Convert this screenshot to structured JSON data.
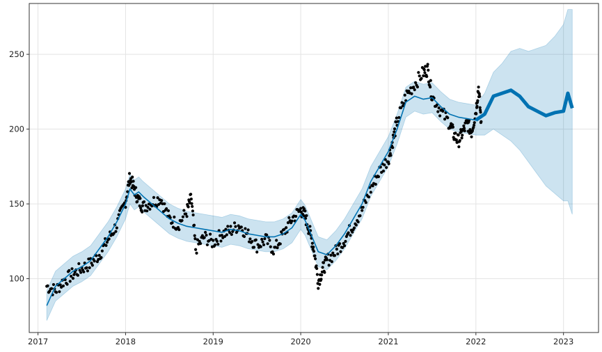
{
  "chart_data": {
    "type": "line",
    "title": "",
    "xlabel": "",
    "ylabel": "",
    "xlim": [
      2016.9,
      2023.4
    ],
    "ylim": [
      64,
      284
    ],
    "grid": true,
    "legend": "none",
    "x_ticks": [
      {
        "value": 2017,
        "label": "2017"
      },
      {
        "value": 2018,
        "label": "2018"
      },
      {
        "value": 2019,
        "label": "2019"
      },
      {
        "value": 2020,
        "label": "2020"
      },
      {
        "value": 2021,
        "label": "2021"
      },
      {
        "value": 2022,
        "label": "2022"
      },
      {
        "value": 2023,
        "label": "2023"
      }
    ],
    "y_ticks": [
      {
        "value": 100,
        "label": "100"
      },
      {
        "value": 150,
        "label": "150"
      },
      {
        "value": 200,
        "label": "200"
      },
      {
        "value": 250,
        "label": "250"
      }
    ],
    "colors": {
      "forecast_line": "#0072B2",
      "interval_fill": "#0072B2",
      "observed_points": "#000000",
      "grid": "#e3e3e3",
      "axes": "#333333"
    },
    "forecast": {
      "x": [
        2017.1,
        2017.2,
        2017.3,
        2017.4,
        2017.5,
        2017.6,
        2017.7,
        2017.8,
        2017.9,
        2018.0,
        2018.05,
        2018.1,
        2018.15,
        2018.2,
        2018.3,
        2018.4,
        2018.5,
        2018.6,
        2018.7,
        2018.8,
        2018.9,
        2019.0,
        2019.1,
        2019.2,
        2019.3,
        2019.4,
        2019.5,
        2019.6,
        2019.7,
        2019.8,
        2019.9,
        2020.0,
        2020.05,
        2020.1,
        2020.15,
        2020.2,
        2020.3,
        2020.4,
        2020.5,
        2020.6,
        2020.7,
        2020.8,
        2020.9,
        2021.0,
        2021.1,
        2021.2,
        2021.3,
        2021.4,
        2021.5,
        2021.6,
        2021.7,
        2021.8,
        2021.9,
        2022.0,
        2022.1,
        2022.2,
        2022.3,
        2022.4,
        2022.5,
        2022.6,
        2022.7,
        2022.8,
        2022.9,
        2023.0,
        2023.05,
        2023.1
      ],
      "yhat": [
        82,
        95,
        100,
        105,
        108,
        112,
        120,
        128,
        138,
        150,
        160,
        156,
        158,
        155,
        150,
        145,
        140,
        137,
        135,
        134,
        133,
        132,
        131,
        133,
        132,
        130,
        129,
        128,
        128,
        130,
        134,
        143,
        139,
        132,
        125,
        118,
        116,
        122,
        130,
        140,
        150,
        165,
        175,
        185,
        200,
        218,
        222,
        220,
        221,
        215,
        210,
        208,
        207,
        206,
        210,
        222,
        224,
        226,
        222,
        215,
        212,
        209,
        211,
        212,
        224,
        214
      ],
      "lower": [
        72,
        85,
        90,
        95,
        98,
        102,
        110,
        118,
        128,
        140,
        150,
        146,
        148,
        145,
        140,
        135,
        130,
        127,
        125,
        124,
        123,
        122,
        121,
        123,
        122,
        120,
        119,
        118,
        118,
        120,
        124,
        133,
        129,
        122,
        115,
        108,
        106,
        112,
        120,
        130,
        140,
        155,
        165,
        175,
        190,
        208,
        212,
        210,
        211,
        205,
        200,
        198,
        197,
        196,
        196,
        200,
        196,
        192,
        186,
        178,
        170,
        162,
        157,
        152,
        152,
        143
      ],
      "upper": [
        92,
        105,
        110,
        115,
        118,
        122,
        130,
        138,
        148,
        160,
        170,
        166,
        168,
        165,
        160,
        155,
        150,
        147,
        145,
        144,
        143,
        142,
        141,
        143,
        142,
        140,
        139,
        138,
        138,
        140,
        144,
        153,
        149,
        142,
        135,
        128,
        126,
        132,
        140,
        150,
        160,
        175,
        185,
        195,
        210,
        228,
        232,
        230,
        231,
        225,
        220,
        218,
        217,
        216,
        224,
        238,
        244,
        252,
        254,
        252,
        254,
        256,
        262,
        270,
        280,
        280
      ]
    },
    "observed_series": [
      {
        "x": 2017.1,
        "y": 95
      },
      {
        "x": 2017.2,
        "y": 92
      },
      {
        "x": 2017.3,
        "y": 99
      },
      {
        "x": 2017.4,
        "y": 103
      },
      {
        "x": 2017.5,
        "y": 107
      },
      {
        "x": 2017.6,
        "y": 110
      },
      {
        "x": 2017.7,
        "y": 116
      },
      {
        "x": 2017.8,
        "y": 126
      },
      {
        "x": 2017.9,
        "y": 136
      },
      {
        "x": 2018.0,
        "y": 152
      },
      {
        "x": 2018.05,
        "y": 168
      },
      {
        "x": 2018.1,
        "y": 160
      },
      {
        "x": 2018.15,
        "y": 152
      },
      {
        "x": 2018.2,
        "y": 148
      },
      {
        "x": 2018.3,
        "y": 151
      },
      {
        "x": 2018.4,
        "y": 154
      },
      {
        "x": 2018.5,
        "y": 140
      },
      {
        "x": 2018.6,
        "y": 136
      },
      {
        "x": 2018.7,
        "y": 145
      },
      {
        "x": 2018.75,
        "y": 154
      },
      {
        "x": 2018.8,
        "y": 120
      },
      {
        "x": 2018.9,
        "y": 128
      },
      {
        "x": 2019.0,
        "y": 124
      },
      {
        "x": 2019.1,
        "y": 130
      },
      {
        "x": 2019.2,
        "y": 132
      },
      {
        "x": 2019.3,
        "y": 136
      },
      {
        "x": 2019.4,
        "y": 129
      },
      {
        "x": 2019.5,
        "y": 122
      },
      {
        "x": 2019.6,
        "y": 126
      },
      {
        "x": 2019.7,
        "y": 119
      },
      {
        "x": 2019.8,
        "y": 130
      },
      {
        "x": 2019.9,
        "y": 140
      },
      {
        "x": 2020.0,
        "y": 146
      },
      {
        "x": 2020.05,
        "y": 142
      },
      {
        "x": 2020.1,
        "y": 132
      },
      {
        "x": 2020.15,
        "y": 120
      },
      {
        "x": 2020.2,
        "y": 98
      },
      {
        "x": 2020.25,
        "y": 106
      },
      {
        "x": 2020.3,
        "y": 112
      },
      {
        "x": 2020.4,
        "y": 118
      },
      {
        "x": 2020.5,
        "y": 126
      },
      {
        "x": 2020.6,
        "y": 136
      },
      {
        "x": 2020.7,
        "y": 146
      },
      {
        "x": 2020.8,
        "y": 160
      },
      {
        "x": 2020.9,
        "y": 172
      },
      {
        "x": 2021.0,
        "y": 180
      },
      {
        "x": 2021.05,
        "y": 192
      },
      {
        "x": 2021.1,
        "y": 205
      },
      {
        "x": 2021.2,
        "y": 222
      },
      {
        "x": 2021.3,
        "y": 230
      },
      {
        "x": 2021.4,
        "y": 238
      },
      {
        "x": 2021.45,
        "y": 240
      },
      {
        "x": 2021.5,
        "y": 222
      },
      {
        "x": 2021.6,
        "y": 212
      },
      {
        "x": 2021.7,
        "y": 204
      },
      {
        "x": 2021.75,
        "y": 196
      },
      {
        "x": 2021.8,
        "y": 192
      },
      {
        "x": 2021.85,
        "y": 198
      },
      {
        "x": 2021.9,
        "y": 204
      },
      {
        "x": 2021.95,
        "y": 198
      },
      {
        "x": 2022.0,
        "y": 212
      },
      {
        "x": 2022.03,
        "y": 228
      },
      {
        "x": 2022.06,
        "y": 205
      }
    ]
  }
}
